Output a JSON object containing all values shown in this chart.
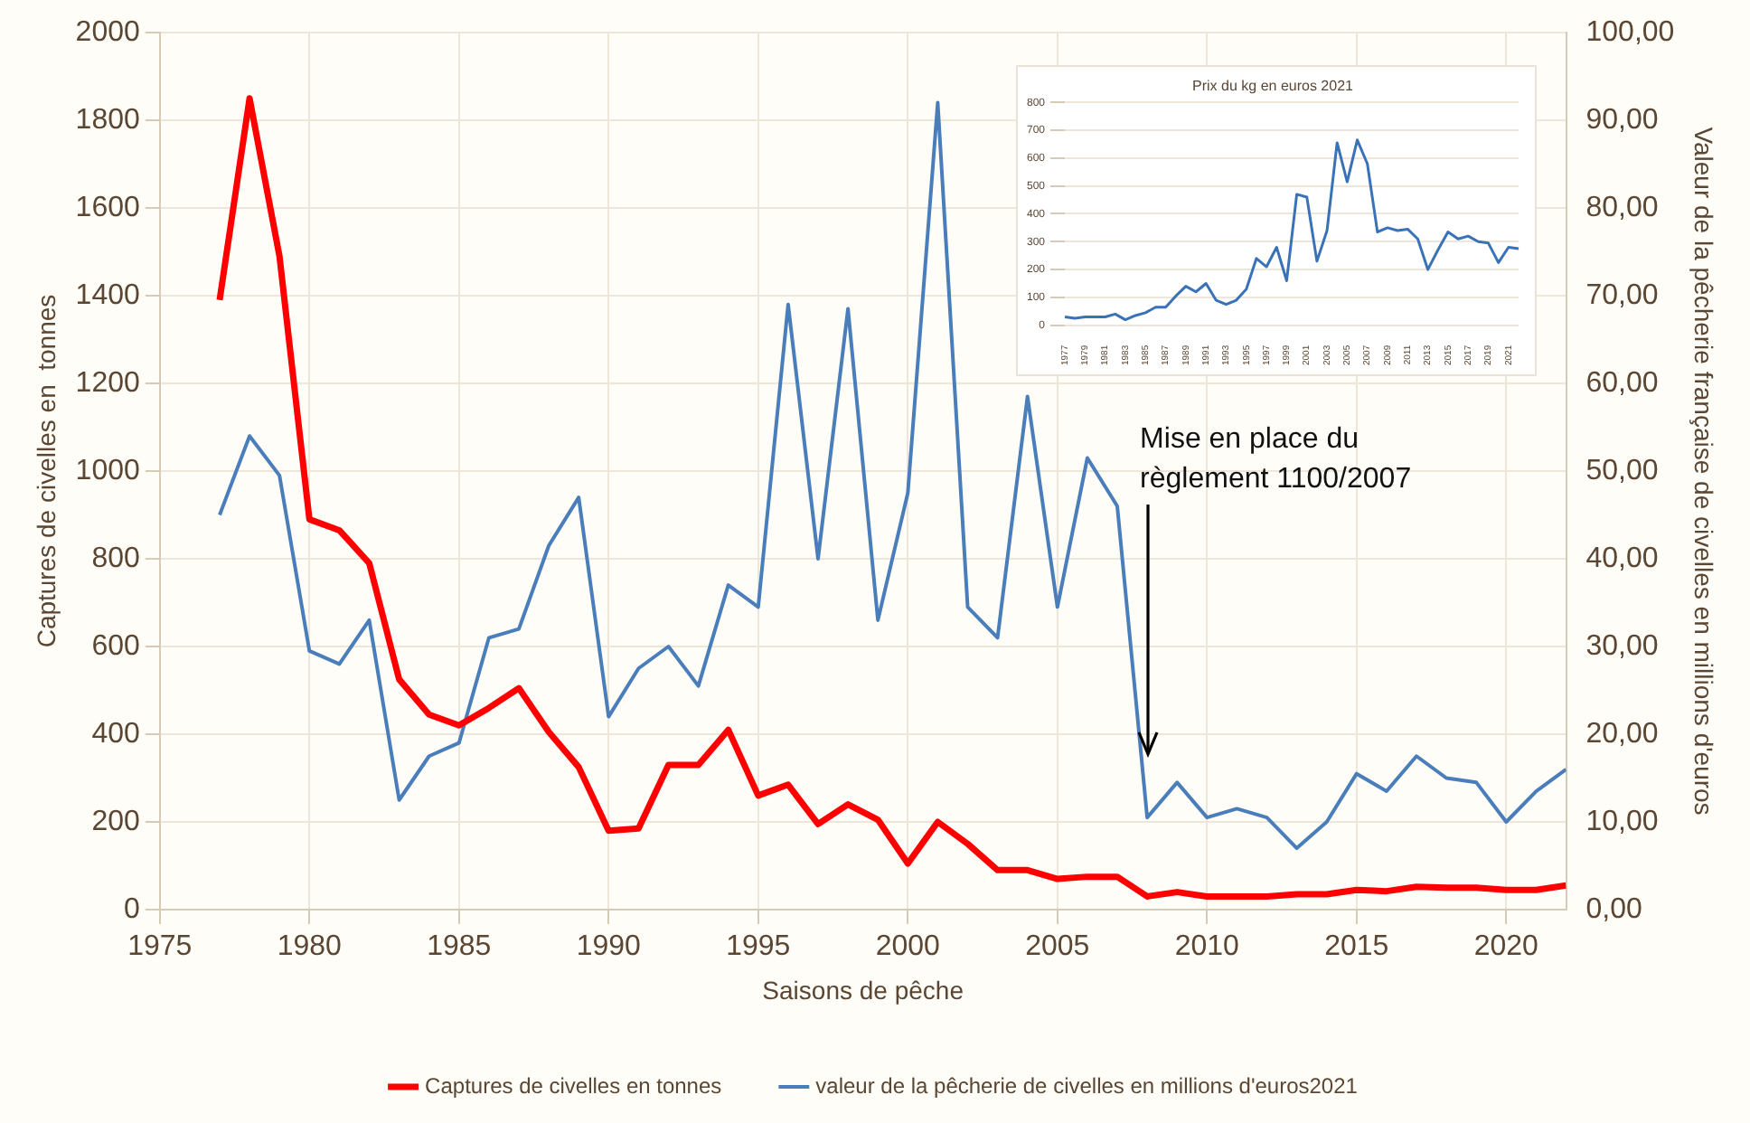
{
  "chart_data": [
    {
      "type": "line",
      "xlabel": "Saisons de pêche",
      "ylabel": "Captures de civelles en  tonnes",
      "y2label": "Valeur de la pêcherie française de civelles en millions d'euros",
      "x": [
        1977,
        1978,
        1979,
        1980,
        1981,
        1982,
        1983,
        1984,
        1985,
        1986,
        1987,
        1988,
        1989,
        1990,
        1991,
        1992,
        1993,
        1994,
        1995,
        1996,
        1997,
        1998,
        1999,
        2000,
        2001,
        2002,
        2003,
        2004,
        2005,
        2006,
        2007,
        2008,
        2009,
        2010,
        2011,
        2012,
        2013,
        2014,
        2015,
        2016,
        2017,
        2018,
        2019,
        2020,
        2021,
        2022
      ],
      "series": [
        {
          "name": "Captures de civelles en tonnes",
          "color": "#ff0000",
          "values": [
            1390,
            1850,
            1490,
            890,
            865,
            790,
            525,
            445,
            420,
            460,
            505,
            405,
            325,
            180,
            185,
            330,
            330,
            410,
            260,
            285,
            195,
            240,
            205,
            105,
            200,
            150,
            90,
            90,
            70,
            75,
            75,
            30,
            40,
            30,
            30,
            30,
            35,
            35,
            45,
            42,
            52,
            50,
            50,
            45,
            45,
            55
          ]
        },
        {
          "name": "valeur de la pêcherie de civelles en millions d'euros2021",
          "color": "#4a7ebb",
          "axis": "y2",
          "values": [
            45,
            54,
            49.5,
            29.5,
            28,
            33,
            12.5,
            17.5,
            19,
            31,
            32,
            41.5,
            47,
            22,
            27.5,
            30,
            25.5,
            37,
            34.5,
            69,
            40,
            68.5,
            33,
            47.5,
            92,
            34.5,
            31,
            58.5,
            34.5,
            51.5,
            46,
            10.5,
            14.5,
            10.5,
            11.5,
            10.5,
            7,
            10,
            15.5,
            13.5,
            17.5,
            15,
            14.5,
            10,
            13.5,
            16
          ]
        }
      ],
      "xlim": [
        1975,
        2022
      ],
      "xticks": [
        1975,
        1980,
        1985,
        1990,
        1995,
        2000,
        2005,
        2010,
        2015,
        2020
      ],
      "ylim": [
        0,
        2000
      ],
      "yticks": [
        0,
        200,
        400,
        600,
        800,
        1000,
        1200,
        1400,
        1600,
        1800,
        2000
      ],
      "y2lim": [
        0,
        100
      ],
      "y2ticks": [
        {
          "value": 0,
          "label": "0,00"
        },
        {
          "value": 10,
          "label": "10,00"
        },
        {
          "value": 20,
          "label": "20,00"
        },
        {
          "value": 30,
          "label": "30,00"
        },
        {
          "value": 40,
          "label": "40,00"
        },
        {
          "value": 50,
          "label": "50,00"
        },
        {
          "value": 60,
          "label": "60,00"
        },
        {
          "value": 70,
          "label": "70,00"
        },
        {
          "value": 80,
          "label": "80,00"
        },
        {
          "value": 90,
          "label": "90,00"
        },
        {
          "value": 100,
          "label": "100,00"
        }
      ],
      "annotations": [
        {
          "text": "Mise en place du\nrèglement 1100/2007",
          "x": 2008,
          "y": 355
        }
      ],
      "grid": true,
      "legend": "bottom",
      "marker": "none",
      "line_style": "solid"
    },
    {
      "type": "line",
      "title": "Prix du kg en euros 2021",
      "categories": [
        "1977",
        null,
        "1979",
        null,
        "1981",
        null,
        "1983",
        null,
        "1985",
        null,
        "1987",
        null,
        "1989",
        null,
        "1991",
        null,
        "1993",
        null,
        "1995",
        null,
        "1997",
        null,
        "1999",
        null,
        "2001",
        null,
        "2003",
        null,
        "2005",
        null,
        "2007",
        null,
        "2009",
        null,
        "2011",
        null,
        "2013",
        null,
        "2015",
        null,
        "2017",
        null,
        "2019",
        null,
        "2021",
        null
      ],
      "series": [
        {
          "color": "#3a72b8",
          "values": [
            30,
            25,
            30,
            30,
            30,
            40,
            20,
            35,
            45,
            65,
            65,
            105,
            140,
            120,
            150,
            90,
            75,
            90,
            130,
            240,
            210,
            280,
            160,
            470,
            460,
            230,
            340,
            655,
            515,
            665,
            580,
            335,
            350,
            340,
            345,
            310,
            200,
            270,
            335,
            310,
            320,
            300,
            295,
            225,
            280,
            275
          ]
        }
      ],
      "ylim": [
        0,
        800
      ],
      "yticks": [
        0,
        100,
        200,
        300,
        400,
        500,
        600,
        700,
        800
      ],
      "grid": "y",
      "legend": false,
      "marker": "none",
      "line_style": "solid"
    }
  ]
}
